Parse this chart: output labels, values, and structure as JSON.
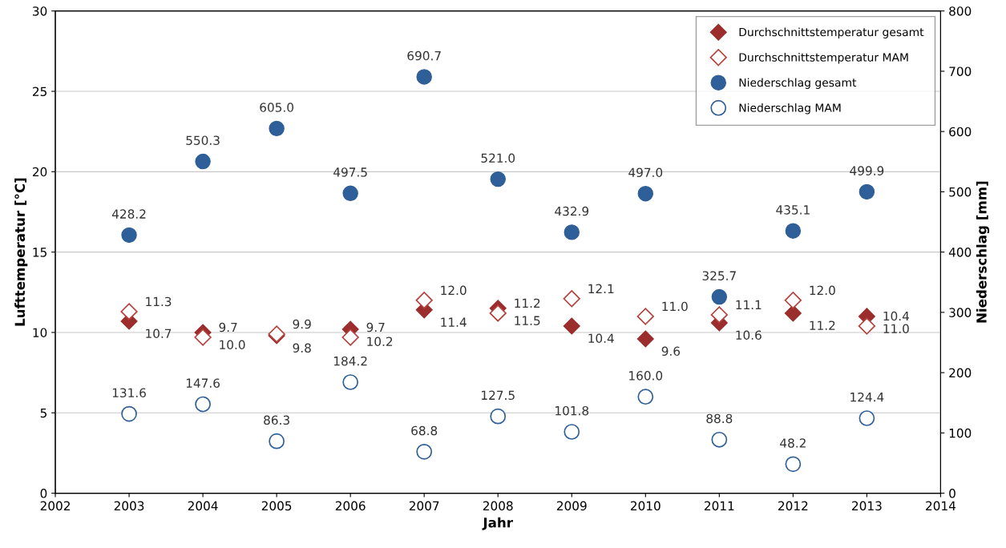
{
  "chart_data": {
    "type": "scatter",
    "xlabel": "Jahr",
    "ylabel": "Lufttemperatur [°C]",
    "y2label": "Niederschlag [mm]",
    "x": [
      2003,
      2004,
      2005,
      2006,
      2007,
      2008,
      2009,
      2010,
      2011,
      2012,
      2013
    ],
    "xlim": [
      2002,
      2014
    ],
    "xticks": [
      2002,
      2003,
      2004,
      2005,
      2006,
      2007,
      2008,
      2009,
      2010,
      2011,
      2012,
      2013,
      2014
    ],
    "ylim": [
      0,
      30
    ],
    "yticks": [
      0,
      5,
      10,
      15,
      20,
      25,
      30
    ],
    "y2lim": [
      0,
      800
    ],
    "y2ticks": [
      0,
      100,
      200,
      300,
      400,
      500,
      600,
      700,
      800
    ],
    "grid": "y",
    "legend": "top right",
    "series": [
      {
        "name": "Durchschnittstemperatur gesamt",
        "color": "#9b2d2d",
        "marker": "diamond",
        "values": [
          10.7,
          10.0,
          9.8,
          10.2,
          11.4,
          11.5,
          10.4,
          9.6,
          10.6,
          11.2,
          11.0
        ],
        "value_labels": [
          "10.7",
          "10.0",
          "9.8",
          "10.2",
          "11.4",
          "11.5",
          "10.4",
          "9.6",
          "10.6",
          "11.2",
          "11.0"
        ]
      },
      {
        "name": "Durchschnittstemperatur MAM",
        "color": "#b5403c",
        "marker": "diamond",
        "values": [
          11.3,
          9.7,
          9.9,
          9.7,
          12.0,
          11.2,
          12.1,
          11.0,
          11.1,
          12.0,
          10.4
        ],
        "value_labels": [
          "11.3",
          "9.7",
          "9.9",
          "9.7",
          "12.0",
          "11.2",
          "12.1",
          "11.0",
          "11.1",
          "12.0",
          "10.4"
        ]
      },
      {
        "name": "Niederschlag gesamt",
        "color": "#2f5f98",
        "marker": "circle",
        "axis": "y2",
        "values": [
          428.2,
          550.3,
          605.0,
          497.5,
          690.7,
          521.0,
          432.9,
          497.0,
          325.7,
          435.1,
          499.9
        ],
        "value_labels": [
          "428.2",
          "550.3",
          "605.0",
          "497.5",
          "690.7",
          "521.0",
          "432.9",
          "497.0",
          "325.7",
          "435.1",
          "499.9"
        ]
      },
      {
        "name": "Niederschlag MAM",
        "color": "#2f5f98",
        "marker": "circle",
        "axis": "y2",
        "values": [
          131.6,
          147.6,
          86.3,
          184.2,
          68.8,
          127.5,
          101.8,
          160.0,
          88.8,
          48.2,
          124.4
        ],
        "value_labels": [
          "131.6",
          "147.6",
          "86.3",
          "184.2",
          "68.8",
          "127.5",
          "101.8",
          "160.0",
          "88.8",
          "48.2",
          "124.4"
        ]
      }
    ]
  }
}
